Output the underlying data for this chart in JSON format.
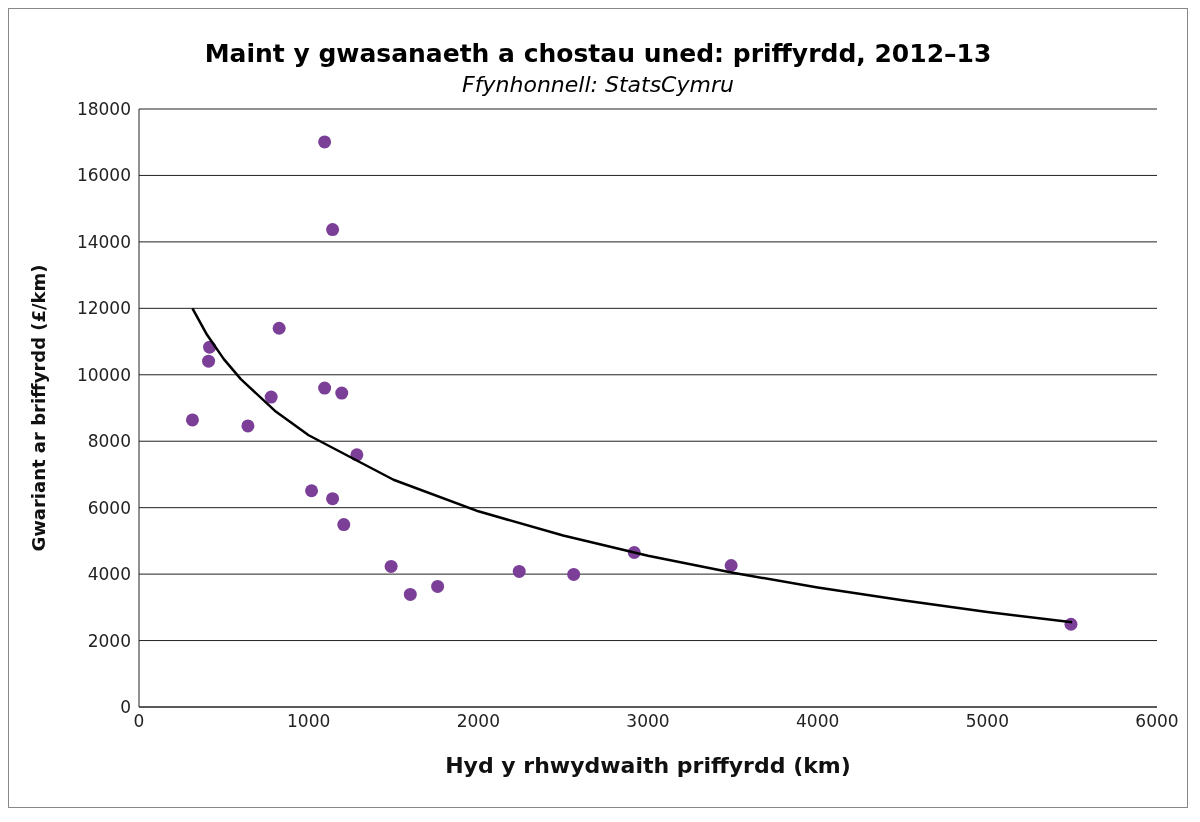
{
  "chart_data": {
    "type": "scatter",
    "title": "Maint y gwasanaeth a chostau uned: priffyrdd, 2012–13",
    "subtitle": "Ffynhonnell: StatsCymru",
    "xlabel": "Hyd y rhwydwaith priffyrdd (km)",
    "ylabel": "Gwariant ar briffyrdd (£/km)",
    "series": [
      {
        "color": "#7b3f98",
        "marker": "circle",
        "x": [
          315,
          416,
          410,
          642,
          779,
          826,
          1094,
          1141,
          1094,
          1195,
          1017,
          1141,
          1207,
          1284,
          1486,
          1599,
          1760,
          2241,
          2562,
          2919,
          3490,
          5493
        ],
        "values": [
          8640,
          10830,
          10410,
          8460,
          9330,
          11400,
          17010,
          14370,
          9600,
          9450,
          6510,
          6270,
          5490,
          7590,
          4230,
          3390,
          3630,
          4080,
          3990,
          4650,
          4260,
          2490
        ]
      },
      {
        "type": "line",
        "color": "#000000",
        "marker": "none",
        "line_style": "solid",
        "x": [
          315,
          400,
          500,
          600,
          800,
          1000,
          1500,
          2000,
          2500,
          3000,
          3500,
          4000,
          4500,
          5000,
          5500
        ],
        "values": [
          12000,
          11210,
          10470,
          9870,
          8920,
          8180,
          6840,
          5890,
          5160,
          4550,
          4040,
          3600,
          3210,
          2860,
          2550
        ]
      }
    ],
    "xlim": [
      0,
      6000
    ],
    "xticks": [
      0,
      1000,
      2000,
      3000,
      4000,
      5000,
      6000
    ],
    "ylim": [
      0,
      18000
    ],
    "yticks": [
      0,
      2000,
      4000,
      6000,
      8000,
      10000,
      12000,
      14000,
      16000,
      18000
    ],
    "grid": "y"
  }
}
